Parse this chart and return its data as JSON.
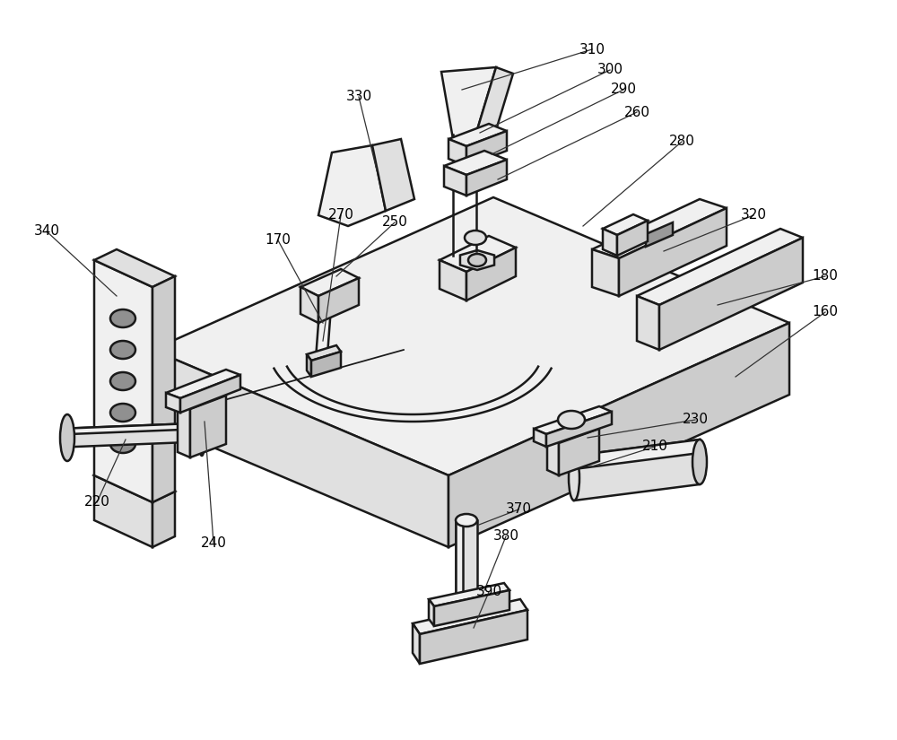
{
  "background_color": "#ffffff",
  "line_color": "#1a1a1a",
  "line_width": 1.8,
  "fill_light": "#f0f0f0",
  "fill_mid": "#e0e0e0",
  "fill_dark": "#cccccc",
  "fill_darker": "#b8b8b8",
  "annotation_color": "#333333",
  "label_fontsize": 11
}
